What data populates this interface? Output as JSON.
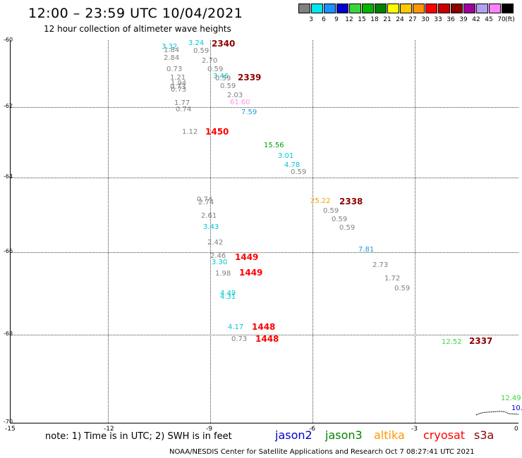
{
  "title": "12:00 – 23:59 UTC 10/04/2021",
  "subtitle": "12 hour collection of altimeter wave heights",
  "legend": {
    "unit": "(ft)",
    "items": [
      {
        "color": "#808080",
        "label": "3"
      },
      {
        "color": "#00e5ee",
        "label": "6"
      },
      {
        "color": "#1e90ff",
        "label": "9"
      },
      {
        "color": "#0000cd",
        "label": "12"
      },
      {
        "color": "#3cd43c",
        "label": "15"
      },
      {
        "color": "#00b400",
        "label": "18"
      },
      {
        "color": "#008200",
        "label": "21"
      },
      {
        "color": "#ffff00",
        "label": "24"
      },
      {
        "color": "#ffc800",
        "label": "27"
      },
      {
        "color": "#ff9600",
        "label": "30"
      },
      {
        "color": "#ff0000",
        "label": "33"
      },
      {
        "color": "#c80000",
        "label": "36"
      },
      {
        "color": "#8b0000",
        "label": "39"
      },
      {
        "color": "#a000a0",
        "label": "42"
      },
      {
        "color": "#b4a0f0",
        "label": "45"
      },
      {
        "color": "#ff82ff",
        "label": "70"
      },
      {
        "color": "#000000",
        "label": ""
      }
    ]
  },
  "lat_labels": [
    "-60",
    "-62",
    "-64",
    "-66",
    "-68",
    "-70"
  ],
  "lon_labels": [
    "-15",
    "-12",
    "-9",
    "-6",
    "-3",
    "0"
  ],
  "wave_labels": [
    {
      "text": "3.32",
      "color": "#00c8d2"
    },
    {
      "text": "1.84",
      "color": "#808080"
    },
    {
      "text": "3.24",
      "color": "#00c8d2"
    },
    {
      "text": "0.59",
      "color": "#808080"
    },
    {
      "text": "2.84",
      "color": "#808080"
    },
    {
      "text": "2.70",
      "color": "#808080"
    },
    {
      "text": "0.73",
      "color": "#808080"
    },
    {
      "text": "0.59",
      "color": "#808080"
    },
    {
      "text": "1.21",
      "color": "#808080"
    },
    {
      "text": "3.46",
      "color": "#00c8d2"
    },
    {
      "text": "0.59",
      "color": "#808080"
    },
    {
      "text": "1.94",
      "color": "#808080"
    },
    {
      "text": "0.73",
      "color": "#808080"
    },
    {
      "text": "0.73",
      "color": "#808080"
    },
    {
      "text": "0.59",
      "color": "#808080"
    },
    {
      "text": "2.03",
      "color": "#808080"
    },
    {
      "text": "1.77",
      "color": "#808080"
    },
    {
      "text": "61.60",
      "color": "#ff96e6"
    },
    {
      "text": "0.74",
      "color": "#808080"
    },
    {
      "text": "7.59",
      "color": "#1e9bd7"
    },
    {
      "text": "1.12",
      "color": "#808080"
    },
    {
      "text": "15.56",
      "color": "#00a000"
    },
    {
      "text": "3.01",
      "color": "#00c8d2"
    },
    {
      "text": "4.78",
      "color": "#00c8d2"
    },
    {
      "text": "0.59",
      "color": "#808080"
    },
    {
      "text": "0.74",
      "color": "#808080"
    },
    {
      "text": "2.74",
      "color": "#808080"
    },
    {
      "text": "25.22",
      "color": "#f0a000"
    },
    {
      "text": "0.59",
      "color": "#808080"
    },
    {
      "text": "2.61",
      "color": "#808080"
    },
    {
      "text": "0.59",
      "color": "#808080"
    },
    {
      "text": "3.43",
      "color": "#00c8d2"
    },
    {
      "text": "0.59",
      "color": "#808080"
    },
    {
      "text": "2.42",
      "color": "#808080"
    },
    {
      "text": "7.81",
      "color": "#1e9bd7"
    },
    {
      "text": "2.46",
      "color": "#808080"
    },
    {
      "text": "3.30",
      "color": "#00c8d2"
    },
    {
      "text": "2.73",
      "color": "#808080"
    },
    {
      "text": "1.98",
      "color": "#808080"
    },
    {
      "text": "1.72",
      "color": "#808080"
    },
    {
      "text": "0.59",
      "color": "#808080"
    },
    {
      "text": "4.49",
      "color": "#00c8d2"
    },
    {
      "text": "4.31",
      "color": "#00c8d2"
    },
    {
      "text": "4.17",
      "color": "#00c8d2"
    },
    {
      "text": "0.73",
      "color": "#808080"
    },
    {
      "text": "12.52",
      "color": "#3cd43c"
    },
    {
      "text": "12.49",
      "color": "#3cd43c"
    },
    {
      "text": "10.",
      "color": "#0000cd"
    }
  ],
  "pass_labels": [
    {
      "text": "2340",
      "color": "#8b0000"
    },
    {
      "text": "2339",
      "color": "#8b0000"
    },
    {
      "text": "1450",
      "color": "#ff0000"
    },
    {
      "text": "2338",
      "color": "#8b0000"
    },
    {
      "text": "1449",
      "color": "#ff0000"
    },
    {
      "text": "1449",
      "color": "#ff0000"
    },
    {
      "text": "1448",
      "color": "#ff0000"
    },
    {
      "text": "1448",
      "color": "#ff0000"
    },
    {
      "text": "2337",
      "color": "#8b0000"
    }
  ],
  "note": "note: 1) Time is in UTC; 2) SWH is in feet",
  "satellites": [
    {
      "name": "jason2",
      "color": "#0000cd"
    },
    {
      "name": "jason3",
      "color": "#008200"
    },
    {
      "name": "altika",
      "color": "#ff9600"
    },
    {
      "name": "cryosat",
      "color": "#ff0000"
    },
    {
      "name": "s3a",
      "color": "#8b0000"
    }
  ],
  "footer": "NOAA/NESDIS Center for Satellite Applications and Research    Oct  7 08:27:41 UTC 2021"
}
